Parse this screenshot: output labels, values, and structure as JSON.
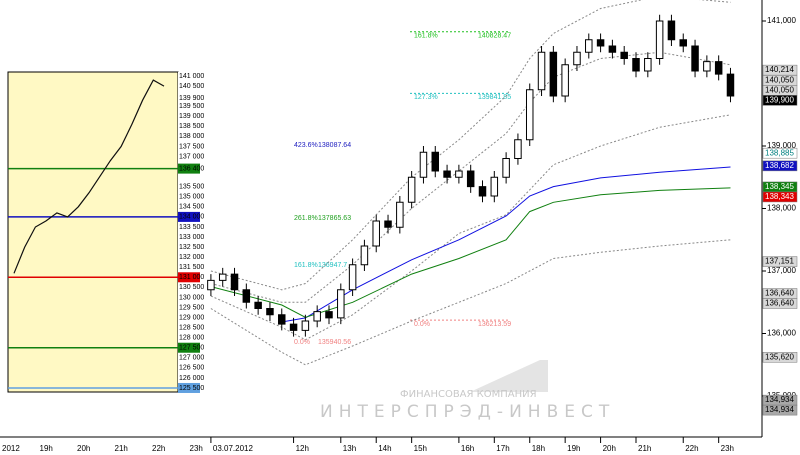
{
  "chart_data": {
    "type": "candlestick",
    "ylim": [
      134344,
      141336
    ],
    "xlim": [
      -0.5,
      46.5
    ],
    "yticks": [
      {
        "value": 141000,
        "label": "141,000"
      },
      {
        "value": 139000,
        "label": "139,000"
      },
      {
        "value": 138000,
        "label": "138,000"
      },
      {
        "value": 137000,
        "label": "137,000"
      },
      {
        "value": 136000,
        "label": "136,000"
      },
      {
        "value": 135000,
        "label": "135,000"
      }
    ],
    "xticks": [
      {
        "value": 0,
        "label": "03.07.2012"
      },
      {
        "value": 7,
        "label": "12h"
      },
      {
        "value": 11,
        "label": "13h"
      },
      {
        "value": 14,
        "label": "14h"
      },
      {
        "value": 17,
        "label": "15h"
      },
      {
        "value": 21,
        "label": "16h"
      },
      {
        "value": 24,
        "label": "17h"
      },
      {
        "value": 27,
        "label": "18h"
      },
      {
        "value": 30,
        "label": "19h"
      },
      {
        "value": 33,
        "label": "20h"
      },
      {
        "value": 36,
        "label": "21h"
      },
      {
        "value": 40,
        "label": "22h"
      },
      {
        "value": 43,
        "label": "23h"
      }
    ],
    "open": [
      136700,
      136850,
      136950,
      136700,
      136500,
      136400,
      136300,
      136150,
      136050,
      136200,
      136350,
      136250,
      136700,
      137100,
      137400,
      137800,
      137700,
      138100,
      138500,
      138900,
      138600,
      138500,
      138600,
      138350,
      138200,
      138500,
      138800,
      139100,
      139900,
      140500,
      139800,
      140300,
      140500,
      140700,
      140600,
      140500,
      140400,
      140200,
      140400,
      141000,
      140700,
      140600,
      140200,
      140350,
      140150
    ],
    "high": [
      136950,
      137050,
      137050,
      136800,
      136600,
      136500,
      136400,
      136250,
      136300,
      136450,
      136450,
      136800,
      137200,
      137500,
      137900,
      137900,
      138200,
      138600,
      139000,
      139000,
      138700,
      138700,
      138700,
      138450,
      138600,
      138900,
      139200,
      140000,
      140600,
      140600,
      140400,
      140600,
      140800,
      140800,
      140700,
      140600,
      140500,
      140500,
      141100,
      141100,
      140800,
      140700,
      140450,
      140450,
      140250
    ],
    "low": [
      136600,
      136750,
      136600,
      136400,
      136300,
      136200,
      136050,
      135950,
      135950,
      136100,
      136150,
      136150,
      136600,
      137000,
      137300,
      137600,
      137600,
      138000,
      138400,
      138500,
      138400,
      138400,
      138250,
      138100,
      138100,
      138400,
      138700,
      139000,
      139800,
      139700,
      139700,
      140200,
      140400,
      140500,
      140400,
      140300,
      140100,
      140100,
      140300,
      140600,
      140500,
      140100,
      140100,
      140050,
      139700
    ],
    "close": [
      136850,
      136950,
      136700,
      136500,
      136400,
      136300,
      136150,
      136050,
      136200,
      136350,
      136250,
      136700,
      137100,
      137400,
      137800,
      137700,
      138100,
      138500,
      138900,
      138600,
      138500,
      138600,
      138350,
      138200,
      138500,
      138800,
      139100,
      139900,
      140500,
      139800,
      140300,
      140500,
      140700,
      140600,
      140500,
      140400,
      140200,
      140400,
      141000,
      140700,
      140600,
      140200,
      140350,
      140150,
      139800
    ],
    "ma_x": [
      0,
      6,
      8,
      12,
      17,
      21,
      25,
      27,
      29,
      33,
      38,
      44
    ],
    "series": [
      {
        "color": "#1010e0",
        "values": [
          null,
          136184,
          136250,
          136700,
          137180,
          137500,
          137880,
          138200,
          138350,
          138490,
          138580,
          138664
        ]
      },
      {
        "color": "#108010",
        "values": [
          136750,
          136456,
          136260,
          136500,
          136950,
          137200,
          137500,
          137950,
          138100,
          138220,
          138290,
          138330
        ]
      }
    ],
    "envelopes": [
      [
        137000,
        136700,
        136800,
        137500,
        138500,
        139100,
        139800,
        140400,
        140800,
        141200,
        141400,
        141300
      ],
      [
        136800,
        136500,
        136500,
        137100,
        138000,
        138600,
        139200,
        139700,
        140100,
        140400,
        140500,
        140300
      ],
      [
        136600,
        136100,
        135900,
        136300,
        137000,
        137600,
        137900,
        138300,
        138700,
        139000,
        139300,
        139500
      ],
      [
        136400,
        135700,
        135500,
        135800,
        136200,
        136500,
        136800,
        137000,
        137200,
        137300,
        137400,
        137500
      ]
    ],
    "badges": [
      {
        "value": 140214,
        "label": "140,214",
        "bg": "#d8d8d8",
        "fg": "#000000"
      },
      {
        "value": 140050,
        "label": "140,050",
        "bg": "#d8d8d8",
        "fg": "#000000"
      },
      {
        "value": 140050,
        "label": "140,050",
        "bg": "#d8d8d8",
        "fg": "#000000"
      },
      {
        "value": 139900,
        "label": "139,900",
        "bg": "#000000",
        "fg": "#ffffff"
      },
      {
        "value": 138885,
        "label": "138,885",
        "bg": "#ffffff",
        "fg": "#008080"
      },
      {
        "value": 138682,
        "label": "138,682",
        "bg": "#1010c0",
        "fg": "#ffffff"
      },
      {
        "value": 138345,
        "label": "138,345",
        "bg": "#108010",
        "fg": "#ffffff"
      },
      {
        "value": 138343,
        "label": "138,343",
        "bg": "#e00000",
        "fg": "#ffffff"
      },
      {
        "value": 137151,
        "label": "137,151",
        "bg": "#d8d8d8",
        "fg": "#000000"
      },
      {
        "value": 136640,
        "label": "136,640",
        "bg": "#d8d8d8",
        "fg": "#000000"
      },
      {
        "value": 136640,
        "label": "136,640",
        "bg": "#d8d8d8",
        "fg": "#000000"
      },
      {
        "value": 135620,
        "label": "135,620",
        "bg": "#d8d8d8",
        "fg": "#000000"
      },
      {
        "value": 134934,
        "label": "134,934",
        "bg": "#a8a8a8",
        "fg": "#000000"
      },
      {
        "value": 134934,
        "label": "134,934",
        "bg": "#a8a8a8",
        "fg": "#000000"
      }
    ],
    "fib_right": [
      {
        "level": "161.8%",
        "price": 140828.47,
        "color": "#20c020"
      },
      {
        "level": "127.3%",
        "price": 139841.85,
        "color": "#20c0c0"
      },
      {
        "level": "0.0%",
        "price": 136213.59,
        "color": "#f08080"
      }
    ],
    "fib_left": [
      {
        "level": "423.6%",
        "price": 138087.64,
        "color": "#2020c0"
      },
      {
        "level": "261.8%",
        "price": 137865.63,
        "color": "#20a020"
      },
      {
        "level": "161.8%",
        "price": 136947.7,
        "color": "#20c0c0"
      },
      {
        "level": "0.0%",
        "price": 135940.56,
        "color": "#f08080"
      }
    ],
    "watermark": {
      "line1": "ФИНАНСОВАЯ КОМПАНИЯ",
      "line2": "ИНТЕРСПРЭД-ИНВЕСТ"
    },
    "inset": {
      "ylim": [
        125300,
        141200
      ],
      "yticks": [
        {
          "value": 141000,
          "label": "141 000"
        },
        {
          "value": 140500,
          "label": "140 500"
        },
        {
          "value": 139900,
          "label": "139 900"
        },
        {
          "value": 139500,
          "label": "139 500"
        },
        {
          "value": 139000,
          "label": "139 000"
        },
        {
          "value": 138500,
          "label": "138 500"
        },
        {
          "value": 138000,
          "label": "138 000"
        },
        {
          "value": 137500,
          "label": "137 500"
        },
        {
          "value": 137000,
          "label": "137 000"
        },
        {
          "value": 136400,
          "label": "136 400"
        },
        {
          "value": 135500,
          "label": "135 500"
        },
        {
          "value": 135000,
          "label": "135 000"
        },
        {
          "value": 134500,
          "label": "134 500"
        },
        {
          "value": 134000,
          "label": "134 000"
        },
        {
          "value": 133500,
          "label": "133 500"
        },
        {
          "value": 133000,
          "label": "133 000"
        },
        {
          "value": 132500,
          "label": "132 500"
        },
        {
          "value": 132000,
          "label": "132 000"
        },
        {
          "value": 131500,
          "label": "131 500"
        },
        {
          "value": 131000,
          "label": "131 000"
        },
        {
          "value": 130500,
          "label": "130 500"
        },
        {
          "value": 130000,
          "label": "130 000"
        },
        {
          "value": 129500,
          "label": "129 500"
        },
        {
          "value": 129000,
          "label": "129 000"
        },
        {
          "value": 128500,
          "label": "128 500"
        },
        {
          "value": 128000,
          "label": "128 000"
        },
        {
          "value": 127500,
          "label": "127 500"
        },
        {
          "value": 127000,
          "label": "127 000"
        },
        {
          "value": 126500,
          "label": "126 500"
        },
        {
          "value": 126000,
          "label": "126 000"
        },
        {
          "value": 125500,
          "label": "125 500"
        }
      ],
      "levels": [
        {
          "value": 136400,
          "color": "#108010"
        },
        {
          "value": 134000,
          "color": "#1010c0"
        },
        {
          "value": 131000,
          "color": "#e00000"
        },
        {
          "value": 127500,
          "color": "#108010"
        },
        {
          "value": 125500,
          "color": "#60a0e0"
        }
      ],
      "line": {
        "color": "#101010",
        "values": [
          131200,
          132500,
          133500,
          133800,
          134200,
          134000,
          134500,
          135200,
          136000,
          136800,
          137500,
          138600,
          139800,
          140800,
          140500
        ]
      },
      "xticks": [
        "2012",
        "19h",
        "20h",
        "21h",
        "22h",
        "23h"
      ]
    }
  }
}
